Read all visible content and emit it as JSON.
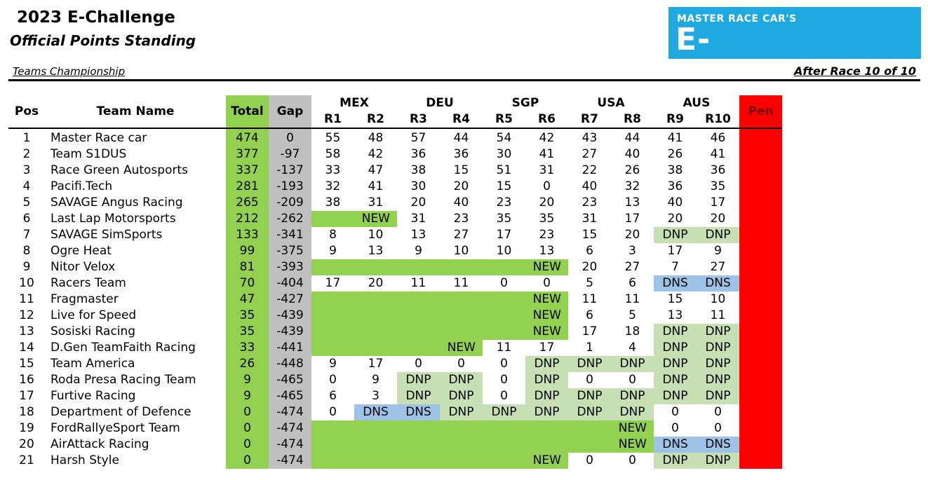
{
  "header": {
    "title": "2023 E-Challenge",
    "subtitle": "Official Points Standing",
    "section": "Teams Championship",
    "after_race": "After Race 10 of 10"
  },
  "logo": {
    "line1": "MASTER RACE CAR'S",
    "line2": "E-CHALLENGE",
    "bg_color": "#1fa9e1"
  },
  "columns": {
    "pos": "Pos",
    "team": "Team Name",
    "total": "Total",
    "gap": "Gap",
    "pen": "Pen",
    "countries": [
      "MEX",
      "DEU",
      "SGP",
      "USA",
      "AUS"
    ],
    "races": [
      "R1",
      "R2",
      "R3",
      "R4",
      "R5",
      "R6",
      "R7",
      "R8",
      "R9",
      "R10"
    ]
  },
  "colors": {
    "total": "#92d050",
    "gap": "#bfbfbf",
    "pen": "#ff0000",
    "new": "#92d050",
    "dnp": "#c6e0b4",
    "dns": "#9dc3e6"
  },
  "rows": [
    {
      "pos": "1",
      "team": "Master Race car",
      "total": "474",
      "gap": "0",
      "races": [
        "55",
        "48",
        "57",
        "44",
        "54",
        "42",
        "43",
        "44",
        "41",
        "46"
      ]
    },
    {
      "pos": "2",
      "team": "Team S1DUS",
      "total": "377",
      "gap": "-97",
      "races": [
        "58",
        "42",
        "36",
        "36",
        "30",
        "41",
        "27",
        "40",
        "26",
        "41"
      ]
    },
    {
      "pos": "3",
      "team": "Race Green Autosports",
      "total": "337",
      "gap": "-137",
      "races": [
        "33",
        "47",
        "38",
        "15",
        "51",
        "31",
        "22",
        "26",
        "38",
        "36"
      ]
    },
    {
      "pos": "4",
      "team": "Pacifi.Tech",
      "total": "281",
      "gap": "-193",
      "races": [
        "32",
        "41",
        "30",
        "20",
        "15",
        "0",
        "40",
        "32",
        "36",
        "35"
      ]
    },
    {
      "pos": "5",
      "team": "SAVAGE Angus Racing",
      "total": "265",
      "gap": "-209",
      "races": [
        "38",
        "31",
        "20",
        "40",
        "23",
        "20",
        "23",
        "13",
        "40",
        "17"
      ]
    },
    {
      "pos": "6",
      "team": "Last Lap Motorsports",
      "total": "212",
      "gap": "-262",
      "races": [
        "",
        "NEW",
        "31",
        "23",
        "35",
        "35",
        "31",
        "17",
        "20",
        "20"
      ],
      "new_upto": 2
    },
    {
      "pos": "7",
      "team": "SAVAGE SimSports",
      "total": "133",
      "gap": "-341",
      "races": [
        "8",
        "10",
        "13",
        "27",
        "17",
        "23",
        "15",
        "20",
        "DNP",
        "DNP"
      ]
    },
    {
      "pos": "8",
      "team": "Ogre Heat",
      "total": "99",
      "gap": "-375",
      "races": [
        "9",
        "13",
        "9",
        "10",
        "10",
        "13",
        "6",
        "3",
        "17",
        "9"
      ]
    },
    {
      "pos": "9",
      "team": "Nitor Velox",
      "total": "81",
      "gap": "-393",
      "races": [
        "",
        "",
        "",
        "",
        "",
        "NEW",
        "20",
        "27",
        "7",
        "27"
      ],
      "new_upto": 6
    },
    {
      "pos": "10",
      "team": "Racers Team",
      "total": "70",
      "gap": "-404",
      "races": [
        "17",
        "20",
        "11",
        "11",
        "0",
        "0",
        "5",
        "6",
        "DNS",
        "DNS"
      ]
    },
    {
      "pos": "11",
      "team": "Fragmaster",
      "total": "47",
      "gap": "-427",
      "races": [
        "",
        "",
        "",
        "",
        "",
        "NEW",
        "11",
        "11",
        "15",
        "10"
      ],
      "new_upto": 6
    },
    {
      "pos": "12",
      "team": "Live for Speed",
      "total": "35",
      "gap": "-439",
      "races": [
        "",
        "",
        "",
        "",
        "",
        "NEW",
        "6",
        "5",
        "13",
        "11"
      ],
      "new_upto": 6
    },
    {
      "pos": "13",
      "team": "Sosiski Racing",
      "total": "35",
      "gap": "-439",
      "races": [
        "",
        "",
        "",
        "",
        "",
        "NEW",
        "17",
        "18",
        "DNP",
        "DNP"
      ],
      "new_upto": 6
    },
    {
      "pos": "14",
      "team": "D.Gen TeamFaith Racing",
      "total": "33",
      "gap": "-441",
      "races": [
        "",
        "",
        "",
        "NEW",
        "11",
        "17",
        "1",
        "4",
        "DNP",
        "DNP"
      ],
      "new_upto": 4
    },
    {
      "pos": "15",
      "team": "Team America",
      "total": "26",
      "gap": "-448",
      "races": [
        "9",
        "17",
        "0",
        "0",
        "0",
        "DNP",
        "DNP",
        "DNP",
        "DNP",
        "DNP"
      ]
    },
    {
      "pos": "16",
      "team": "Roda Presa Racing Team",
      "total": "9",
      "gap": "-465",
      "races": [
        "0",
        "9",
        "DNP",
        "DNP",
        "0",
        "DNP",
        "0",
        "0",
        "DNP",
        "DNP"
      ]
    },
    {
      "pos": "17",
      "team": "Furtive Racing",
      "total": "9",
      "gap": "-465",
      "races": [
        "6",
        "3",
        "DNP",
        "DNP",
        "0",
        "DNP",
        "DNP",
        "DNP",
        "DNP",
        "DNP"
      ]
    },
    {
      "pos": "18",
      "team": "Department of Defence",
      "total": "0",
      "gap": "-474",
      "races": [
        "0",
        "DNS",
        "DNS",
        "DNP",
        "DNP",
        "DNP",
        "DNP",
        "DNP",
        "0",
        "0"
      ]
    },
    {
      "pos": "19",
      "team": "FordRallyeSport Team",
      "total": "0",
      "gap": "-474",
      "races": [
        "",
        "",
        "",
        "",
        "",
        "",
        "",
        "NEW",
        "0",
        "0"
      ],
      "new_upto": 8
    },
    {
      "pos": "20",
      "team": "AirAttack Racing",
      "total": "0",
      "gap": "-474",
      "races": [
        "",
        "",
        "",
        "",
        "",
        "",
        "",
        "NEW",
        "DNS",
        "DNS"
      ],
      "new_upto": 8
    },
    {
      "pos": "21",
      "team": "Harsh Style",
      "total": "0",
      "gap": "-474",
      "races": [
        "",
        "",
        "",
        "",
        "",
        "NEW",
        "0",
        "0",
        "DNP",
        "DNP"
      ],
      "new_upto": 6
    }
  ]
}
